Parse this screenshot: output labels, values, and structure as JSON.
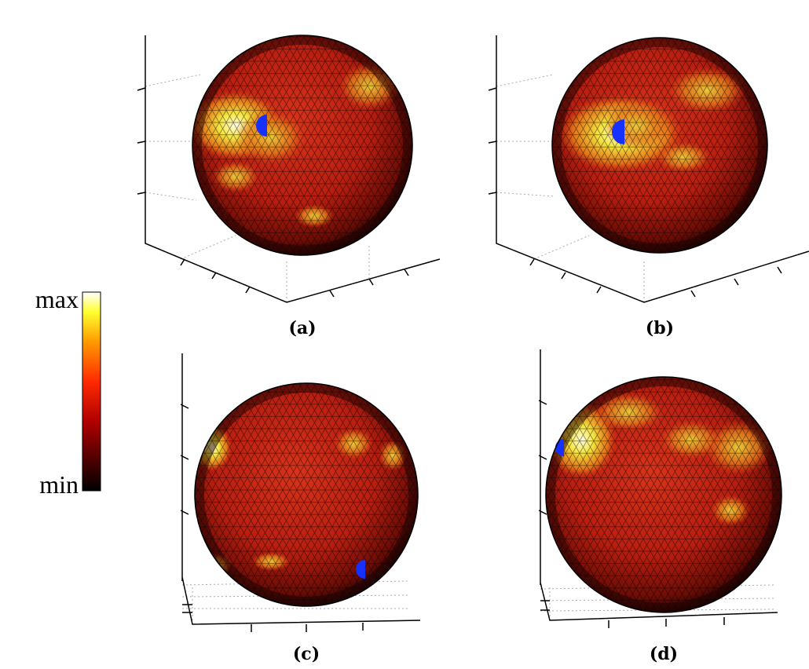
{
  "colorbar": {
    "max_label": "max",
    "min_label": "min"
  },
  "panels": [
    {
      "caption": "(a)"
    },
    {
      "caption": "(b)"
    },
    {
      "caption": "(c)"
    },
    {
      "caption": "(d)"
    }
  ]
}
